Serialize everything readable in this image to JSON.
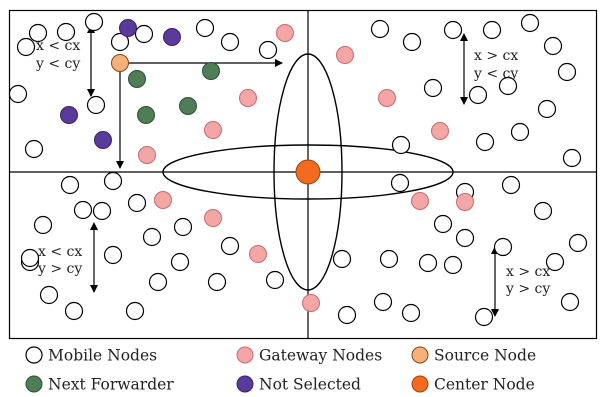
{
  "colors": {
    "mobile_fill": "#ffffff",
    "gateway_fill": "#f4a6a6",
    "gateway_stroke": "#c96a6a",
    "source_fill": "#f6b07a",
    "forwarder_fill": "#4f7d55",
    "notselected_fill": "#5a3a9a",
    "center_fill": "#f26b1e",
    "line": "#000000"
  },
  "quadrant_labels": {
    "top_left": [
      "x < cx",
      "y < cy"
    ],
    "top_right": [
      "x > cx",
      "y < cy"
    ],
    "bottom_left": [
      "x < cx",
      "y > cy"
    ],
    "bottom_right": [
      "x > cx",
      "y > cy"
    ]
  },
  "legend": [
    {
      "label": "Mobile Nodes",
      "type": "mobile"
    },
    {
      "label": "Gateway Nodes",
      "type": "gateway"
    },
    {
      "label": "Source Node",
      "type": "source"
    },
    {
      "label": "Next Forwarder",
      "type": "forwarder"
    },
    {
      "label": "Not Selected",
      "type": "notselected"
    },
    {
      "label": "Center Node",
      "type": "center"
    }
  ]
}
